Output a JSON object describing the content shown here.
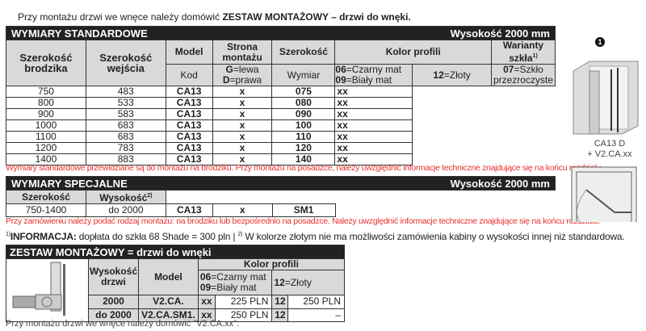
{
  "intro": {
    "text_a": "Przy montażu drzwi we wnęce należy domówić ",
    "text_b": "ZESTAW MONTAŻOWY – drzwi do wnęki."
  },
  "standard": {
    "title": "WYMIARY STANDARDOWE",
    "height": "Wysokość 2000 mm",
    "headers": {
      "szer_brodzika": "Szerokość brodzika",
      "szer_wejscia": "Szerokość wejścia",
      "model": "Model",
      "strona": "Strona montażu",
      "szerokosc": "Szerokość",
      "kolor": "Kolor profili",
      "warianty": "Warianty szkła",
      "warianty_sup": "1)"
    },
    "sub": {
      "kod": "Kod",
      "g": "G",
      "lewa": "=lewa",
      "d": "D",
      "prawa": "=prawa",
      "wymiar": "Wymiar",
      "c06": "06",
      "czarny": "=Czarny mat",
      "c09": "09",
      "bialy": "=Biały mat",
      "c12": "12",
      "zloty": "=Złoty",
      "c07": "07",
      "szklo": "=Szkło przezroczyste"
    },
    "rows": [
      [
        "750",
        "483",
        "CA13",
        "x",
        "075",
        "xx"
      ],
      [
        "800",
        "533",
        "CA13",
        "x",
        "080",
        "xx"
      ],
      [
        "900",
        "583",
        "CA13",
        "x",
        "090",
        "xx"
      ],
      [
        "1000",
        "683",
        "CA13",
        "x",
        "100",
        "xx"
      ],
      [
        "1100",
        "683",
        "CA13",
        "x",
        "110",
        "xx"
      ],
      [
        "1200",
        "783",
        "CA13",
        "x",
        "120",
        "xx"
      ],
      [
        "1400",
        "883",
        "CA13",
        "x",
        "140",
        "xx"
      ]
    ],
    "note": "Wymiary standardowe przewidziane są do montażu na brodziku. Przy montażu na posadzce, należy uwzględnić informacje techniczne znajdujące się na końcu rozdziału."
  },
  "special": {
    "title": "WYMIARY SPECJALNE",
    "height": "Wysokość 2000 mm",
    "h_szer": "Szerokość",
    "h_wys": "Wysokość",
    "h_wys_sup": "2)",
    "row": [
      "750-1400",
      "do 2000",
      "CA13",
      "x",
      "SM1"
    ],
    "note": "Przy zamówieniu należy podać rodzaj montażu: na brodziku lub bezpośrednio na posadzce. Należy uwzględnić informacje techniczne znajdujące się na końcu rozdziału."
  },
  "info": {
    "sup1": "1)",
    "label": "INFORMACJA:",
    "text1": " dopłata do szkła 68 Shade = 300 pln | ",
    "sup2": "2)",
    "text2": " W kolorze złotym nie ma możliwości zamówienia kabiny o wysokości innej niż standardowa."
  },
  "zestaw": {
    "title": "ZESTAW MONTAŻOWY = drzwi do wnęki",
    "h_wys": "Wysokość drzwi",
    "h_model": "Model",
    "h_kolor": "Kolor profili",
    "c06": "06",
    "czarny": "=Czarny mat",
    "c09": "09",
    "bialy": "=Biały mat",
    "c12": "12",
    "zloty": "=Złoty",
    "rows": [
      [
        "2000",
        "V2.CA.",
        "xx",
        "225 PLN",
        "12",
        "250 PLN"
      ],
      [
        "do 2000",
        "V2.CA.SM1.",
        "xx",
        "250 PLN",
        "12",
        "–"
      ]
    ],
    "note": "Przy montażu drzwi we wnęce należy domówić \"V2.CA.xx\"."
  },
  "figure": {
    "number": "1",
    "caption1": "CA13 D",
    "caption2": "+ V2.CA.xx"
  }
}
